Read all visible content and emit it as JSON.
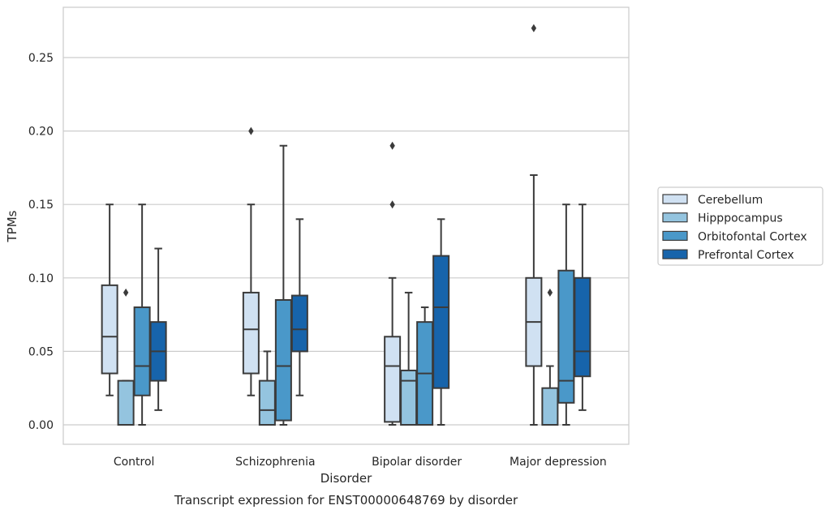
{
  "chart_data": {
    "type": "box",
    "title": "",
    "caption": "Transcript expression for ENST00000648769 by disorder",
    "xlabel": "Disorder",
    "ylabel": "TPMs",
    "ylim": [
      -0.013,
      0.284
    ],
    "yticks": [
      "0.00",
      "0.05",
      "0.10",
      "0.15",
      "0.20",
      "0.25"
    ],
    "grid": true,
    "legend_position": "right",
    "categories": [
      "Control",
      "Schizophrenia",
      "Bipolar disorder",
      "Major depression"
    ],
    "series": [
      {
        "name": "Cerebellum",
        "color": "#d0e1f2",
        "boxes": [
          {
            "whisker_low": 0.02,
            "q1": 0.035,
            "median": 0.06,
            "q3": 0.095,
            "whisker_high": 0.15,
            "outliers": []
          },
          {
            "whisker_low": 0.02,
            "q1": 0.035,
            "median": 0.065,
            "q3": 0.09,
            "whisker_high": 0.15,
            "outliers": [
              0.2
            ]
          },
          {
            "whisker_low": 0.0,
            "q1": 0.002,
            "median": 0.04,
            "q3": 0.06,
            "whisker_high": 0.1,
            "outliers": [
              0.15,
              0.19
            ]
          },
          {
            "whisker_low": 0.0,
            "q1": 0.04,
            "median": 0.07,
            "q3": 0.1,
            "whisker_high": 0.17,
            "outliers": [
              0.27
            ]
          }
        ]
      },
      {
        "name": "Hipppocampus",
        "color": "#94c4df",
        "boxes": [
          {
            "whisker_low": 0.0,
            "q1": 0.0,
            "median": 0.0,
            "q3": 0.03,
            "whisker_high": 0.03,
            "outliers": [
              0.09
            ]
          },
          {
            "whisker_low": 0.0,
            "q1": 0.0,
            "median": 0.01,
            "q3": 0.03,
            "whisker_high": 0.05,
            "outliers": []
          },
          {
            "whisker_low": 0.0,
            "q1": 0.0,
            "median": 0.03,
            "q3": 0.037,
            "whisker_high": 0.09,
            "outliers": []
          },
          {
            "whisker_low": 0.0,
            "q1": 0.0,
            "median": 0.0,
            "q3": 0.025,
            "whisker_high": 0.04,
            "outliers": [
              0.09
            ]
          }
        ]
      },
      {
        "name": "Orbitofontal Cortex",
        "color": "#4a98c9",
        "boxes": [
          {
            "whisker_low": 0.0,
            "q1": 0.02,
            "median": 0.04,
            "q3": 0.08,
            "whisker_high": 0.15,
            "outliers": []
          },
          {
            "whisker_low": 0.0,
            "q1": 0.003,
            "median": 0.04,
            "q3": 0.085,
            "whisker_high": 0.19,
            "outliers": []
          },
          {
            "whisker_low": 0.0,
            "q1": 0.0,
            "median": 0.035,
            "q3": 0.07,
            "whisker_high": 0.08,
            "outliers": []
          },
          {
            "whisker_low": 0.0,
            "q1": 0.015,
            "median": 0.03,
            "q3": 0.105,
            "whisker_high": 0.15,
            "outliers": []
          }
        ]
      },
      {
        "name": "Prefrontal Cortex",
        "color": "#1764ab",
        "boxes": [
          {
            "whisker_low": 0.01,
            "q1": 0.03,
            "median": 0.05,
            "q3": 0.07,
            "whisker_high": 0.12,
            "outliers": []
          },
          {
            "whisker_low": 0.02,
            "q1": 0.05,
            "median": 0.065,
            "q3": 0.088,
            "whisker_high": 0.14,
            "outliers": []
          },
          {
            "whisker_low": 0.0,
            "q1": 0.025,
            "median": 0.08,
            "q3": 0.115,
            "whisker_high": 0.14,
            "outliers": []
          },
          {
            "whisker_low": 0.01,
            "q1": 0.033,
            "median": 0.05,
            "q3": 0.1,
            "whisker_high": 0.15,
            "outliers": []
          }
        ]
      }
    ]
  }
}
